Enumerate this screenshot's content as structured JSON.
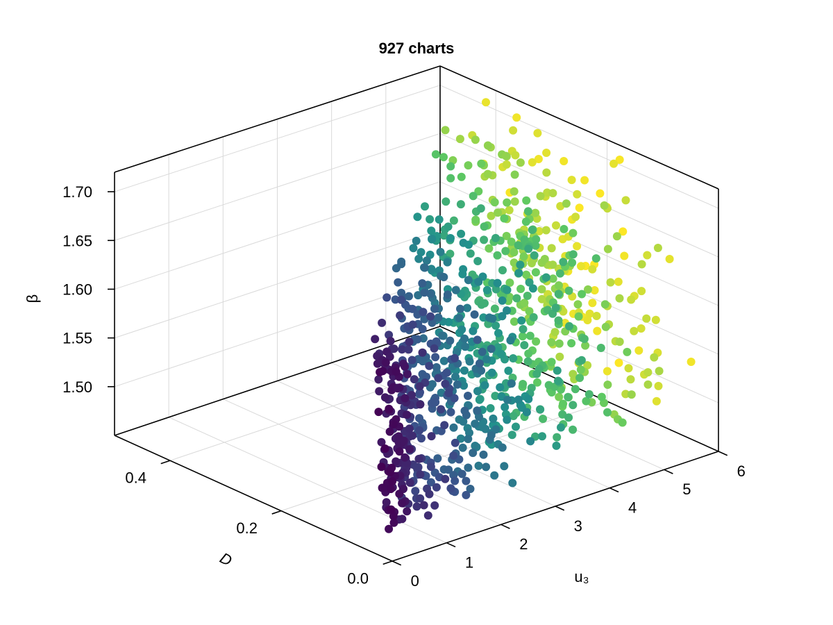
{
  "chart_data": {
    "type": "scatter",
    "title": "927 charts",
    "xlabel": "u₃",
    "ylabel": "D",
    "zlabel": "β",
    "xlim": [
      0,
      6
    ],
    "ylim": [
      0,
      0.5
    ],
    "zlim": [
      1.45,
      1.72
    ],
    "xticks": [
      "0",
      "1",
      "2",
      "3",
      "4",
      "5",
      "6"
    ],
    "yticks": [
      "0.0",
      "0.2",
      "0.4"
    ],
    "zticks": [
      "1.50",
      "1.55",
      "1.60",
      "1.65",
      "1.70"
    ],
    "grid": true,
    "legend": "none",
    "colormap": [
      "#440154",
      "#3b528b",
      "#21918c",
      "#5ec962",
      "#fde725"
    ],
    "point_color": "viridis by u₃",
    "point_count": 927
  }
}
